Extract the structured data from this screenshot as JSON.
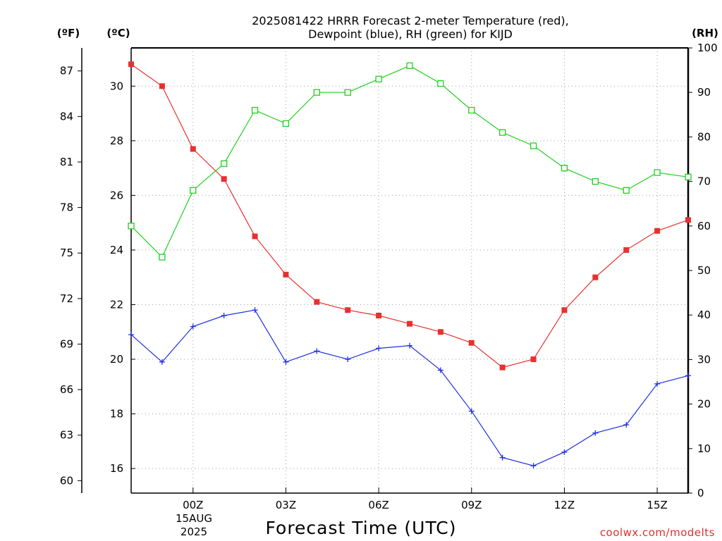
{
  "chart_data": {
    "type": "line",
    "title_line1": "2025081422 HRRR Forecast 2-meter Temperature (red),",
    "title_line2": "Dewpoint (blue), RH (green) for KIJD",
    "xlabel": "Forecast Time (UTC)",
    "credit": "coolwx.com/modelts",
    "unit_left_outer": "(ºF)",
    "unit_left_inner": "(ºC)",
    "unit_right": "(RH)",
    "x_range": [
      -2,
      16
    ],
    "x_ticks": [
      {
        "x": 0,
        "label": "00Z"
      },
      {
        "x": 3,
        "label": "03Z"
      },
      {
        "x": 6,
        "label": "06Z"
      },
      {
        "x": 9,
        "label": "09Z"
      },
      {
        "x": 12,
        "label": "12Z"
      },
      {
        "x": 15,
        "label": "15Z"
      }
    ],
    "date_label_day": "15AUG",
    "date_label_year": "2025",
    "celsius_axis": {
      "range": [
        15.1,
        31.4
      ],
      "ticks": [
        16,
        18,
        20,
        22,
        24,
        26,
        28,
        30
      ]
    },
    "fahrenheit_ticks": [
      60,
      63,
      66,
      69,
      72,
      75,
      78,
      81,
      84,
      87
    ],
    "rh_axis": {
      "range": [
        0,
        100
      ],
      "ticks": [
        0,
        10,
        20,
        30,
        40,
        50,
        60,
        70,
        80,
        90,
        100
      ]
    },
    "grid": true,
    "series": [
      {
        "color": "#e83030",
        "marker": "filled-square",
        "axis": "celsius",
        "x": [
          -2,
          -1,
          0,
          1,
          2,
          3,
          4,
          5,
          6,
          7,
          8,
          9,
          10,
          11,
          12,
          13,
          14,
          15,
          16
        ],
        "values": [
          30.8,
          30.0,
          27.7,
          26.6,
          24.5,
          23.1,
          22.1,
          21.8,
          21.6,
          21.3,
          21.0,
          20.6,
          19.7,
          20.0,
          21.8,
          23.0,
          24.0,
          24.7,
          25.1
        ]
      },
      {
        "color": "#2030e0",
        "marker": "plus",
        "axis": "celsius",
        "x": [
          -2,
          -1,
          0,
          1,
          2,
          3,
          4,
          5,
          6,
          7,
          8,
          9,
          10,
          11,
          12,
          13,
          14,
          15,
          16
        ],
        "values": [
          20.9,
          19.9,
          21.2,
          21.6,
          21.8,
          19.9,
          20.3,
          20.0,
          20.4,
          20.5,
          19.6,
          18.1,
          16.4,
          16.1,
          16.6,
          17.3,
          17.6,
          19.1,
          19.4
        ]
      },
      {
        "color": "#20d020",
        "marker": "open-square",
        "axis": "rh",
        "x": [
          -2,
          -1,
          0,
          1,
          2,
          3,
          4,
          5,
          6,
          7,
          8,
          9,
          10,
          11,
          12,
          13,
          14,
          15,
          16
        ],
        "values": [
          60,
          53,
          68,
          74,
          86,
          83,
          90,
          90,
          93,
          96,
          92,
          86,
          81,
          78,
          73,
          70,
          68,
          72,
          71
        ]
      }
    ]
  }
}
